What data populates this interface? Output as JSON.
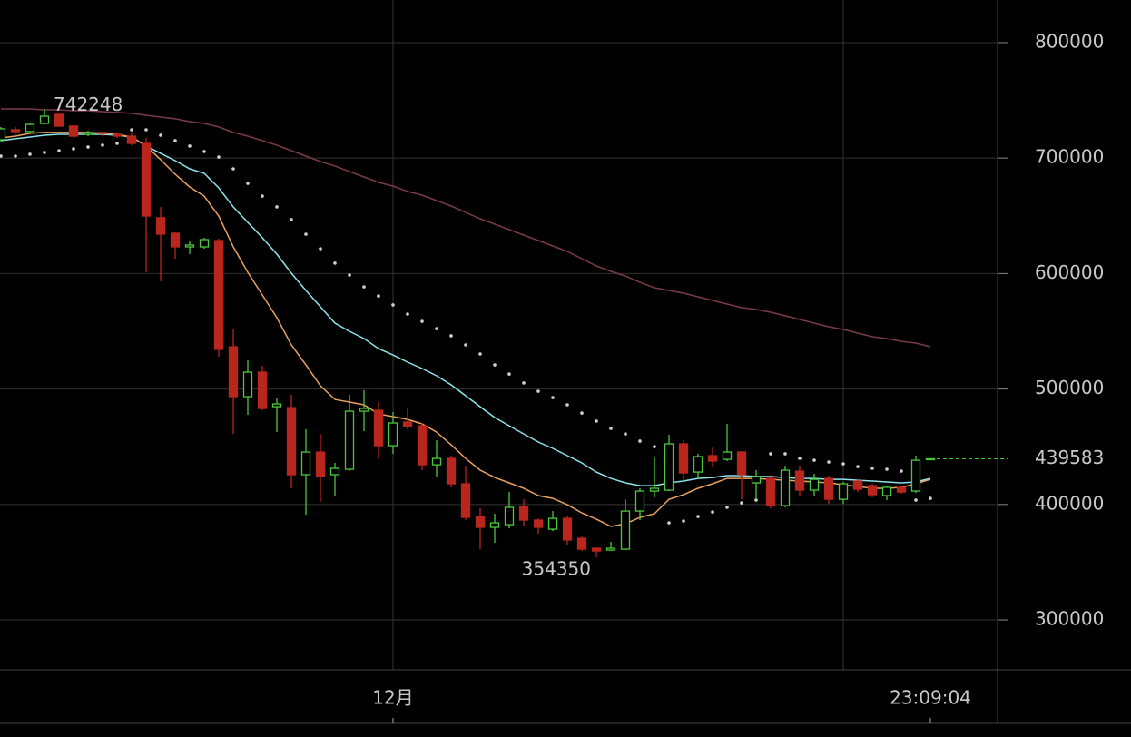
{
  "chart_data": {
    "type": "candlestick",
    "categories": [
      null,
      null,
      null,
      null,
      null,
      null,
      null,
      null,
      null,
      null,
      null,
      null,
      null,
      null,
      null,
      null,
      null,
      null,
      null,
      null,
      null,
      null,
      null,
      null,
      null,
      null,
      null,
      "12月",
      null,
      null,
      null,
      null,
      null,
      null,
      null,
      null,
      null,
      null,
      null,
      null,
      null,
      null,
      null,
      null,
      null,
      null,
      null,
      null,
      null,
      null,
      null,
      null,
      null,
      null,
      null,
      null,
      null,
      null,
      null,
      null,
      null,
      null,
      null,
      null,
      "23:09:04"
    ],
    "open": [
      715900,
      724500,
      723000,
      730000,
      737900,
      727700,
      720600,
      722200,
      720600,
      719000,
      712700,
      648300,
      634900,
      623100,
      623100,
      628600,
      536600,
      493400,
      514600,
      484700,
      483900,
      425800,
      445400,
      425800,
      430500,
      480800,
      481600,
      450900,
      471400,
      468200,
      434400,
      439900,
      417900,
      389600,
      380200,
      382500,
      398300,
      386500,
      378600,
      388000,
      370700,
      362100,
      360500,
      361300,
      394300,
      411600,
      412400,
      452500,
      428100,
      442300,
      439100,
      445400,
      418700,
      422600,
      399000,
      428900,
      412400,
      422600,
      404500,
      420300,
      416300,
      407700,
      414800,
      411600,
      439100
    ],
    "high": [
      726900,
      726900,
      730800,
      742248,
      738700,
      728500,
      723700,
      723000,
      722200,
      721400,
      717400,
      657700,
      635700,
      628600,
      631000,
      630200,
      551600,
      524800,
      520100,
      492600,
      495000,
      465100,
      461100,
      436000,
      495000,
      498900,
      488700,
      480000,
      483200,
      470600,
      455600,
      442300,
      433600,
      396700,
      392000,
      410800,
      404500,
      388000,
      394300,
      389600,
      372300,
      362900,
      367600,
      404500,
      414000,
      441500,
      460400,
      455600,
      443900,
      449400,
      469800,
      446200,
      429700,
      424200,
      433600,
      433600,
      426600,
      425000,
      419500,
      421800,
      417900,
      416300,
      416300,
      442300,
      439900
    ],
    "low": [
      714300,
      720600,
      721400,
      729200,
      726900,
      717400,
      719000,
      719000,
      717400,
      711200,
      601100,
      593200,
      612900,
      616800,
      621500,
      528000,
      461100,
      477700,
      481600,
      462700,
      414000,
      391200,
      402200,
      406900,
      428900,
      463500,
      439900,
      443900,
      465100,
      429700,
      424200,
      414800,
      386500,
      361300,
      366800,
      379400,
      381000,
      374700,
      377000,
      365200,
      359700,
      354350,
      359700,
      360500,
      386500,
      406100,
      411600,
      420300,
      422600,
      432800,
      437600,
      404500,
      404500,
      396700,
      397500,
      406900,
      406900,
      400600,
      400600,
      410800,
      406100,
      403800,
      409300,
      410000,
      438800
    ],
    "close": [
      725300,
      723000,
      729200,
      736300,
      727700,
      719000,
      722200,
      721400,
      719000,
      712700,
      649800,
      634100,
      623100,
      624700,
      629400,
      534300,
      493400,
      514600,
      483200,
      487100,
      425800,
      445400,
      424200,
      431300,
      480800,
      483200,
      450900,
      470600,
      467400,
      434400,
      439900,
      417900,
      388800,
      380200,
      384100,
      397500,
      386500,
      380200,
      388000,
      369200,
      361300,
      359700,
      362100,
      394300,
      411600,
      414000,
      452500,
      427300,
      441500,
      437600,
      445400,
      425800,
      424200,
      399000,
      429700,
      412400,
      421800,
      404500,
      417900,
      413200,
      408500,
      414800,
      410800,
      438300,
      439583
    ],
    "up_color": "#4cc83c",
    "down_color": "#b8261e",
    "indicators": [
      {
        "color": "#7a3a4a",
        "style": "line",
        "values": [
          742600,
          742600,
          742600,
          741800,
          741800,
          741000,
          741000,
          740200,
          739500,
          738700,
          737100,
          735500,
          734000,
          731600,
          730000,
          726900,
          722200,
          719000,
          715100,
          711200,
          706400,
          701700,
          697000,
          693100,
          688400,
          683600,
          678900,
          675800,
          671100,
          667900,
          663200,
          658500,
          653000,
          647500,
          642800,
          638000,
          633300,
          628600,
          623900,
          619200,
          612900,
          606600,
          601900,
          597900,
          592400,
          587700,
          585400,
          583000,
          579900,
          576700,
          573600,
          570400,
          568900,
          566500,
          563400,
          560200,
          557100,
          553900,
          551600,
          548400,
          545300,
          543700,
          541300,
          539800,
          536600
        ]
      },
      {
        "color": "#8ee3ea",
        "style": "line",
        "values": [
          715100,
          716700,
          718200,
          719800,
          720600,
          720600,
          720600,
          720600,
          719800,
          718200,
          710400,
          704100,
          697800,
          690700,
          686800,
          674200,
          657700,
          644300,
          631000,
          616800,
          600300,
          585400,
          571200,
          557100,
          550000,
          543700,
          535000,
          529500,
          523300,
          517800,
          511500,
          503600,
          494200,
          484700,
          475300,
          468200,
          461100,
          454100,
          448600,
          442300,
          436000,
          428100,
          422600,
          418700,
          416300,
          416300,
          418700,
          420300,
          422600,
          423400,
          425000,
          425000,
          424200,
          424200,
          423400,
          422600,
          422600,
          421800,
          421800,
          421000,
          420300,
          419500,
          418700,
          419500,
          422600
        ]
      },
      {
        "color": "#e8a060",
        "style": "line",
        "values": [
          717400,
          719000,
          721400,
          722200,
          722200,
          722200,
          722200,
          721400,
          720600,
          718200,
          710400,
          698600,
          686000,
          675000,
          667100,
          649800,
          623100,
          601100,
          581400,
          561800,
          538200,
          520900,
          502800,
          491000,
          488700,
          486300,
          478400,
          476100,
          473700,
          469800,
          462700,
          451700,
          439900,
          429700,
          423400,
          418700,
          414000,
          407700,
          405300,
          399800,
          392700,
          387200,
          381000,
          383300,
          388800,
          392000,
          404500,
          408500,
          414000,
          417900,
          422600,
          422600,
          422600,
          421800,
          421000,
          420300,
          419500,
          418700,
          417100,
          415500,
          414000,
          414000,
          414800,
          417900,
          421800
        ]
      },
      {
        "color": "#cfcfcf",
        "style": "dots",
        "values": [
          701700,
          701700,
          703300,
          704900,
          706400,
          708000,
          709600,
          711200,
          712700,
          724500,
          724500,
          719800,
          715100,
          710400,
          705700,
          700900,
          690700,
          678100,
          667100,
          657700,
          646700,
          634100,
          621500,
          609000,
          598700,
          588500,
          580600,
          572800,
          564900,
          558600,
          552300,
          546100,
          538200,
          530300,
          520900,
          513000,
          505200,
          498100,
          492600,
          486300,
          479200,
          472200,
          465900,
          461100,
          454900,
          450100,
          384100,
          385700,
          389600,
          393500,
          397500,
          401400,
          403800,
          443900,
          443900,
          439900,
          438300,
          436800,
          435200,
          432800,
          431300,
          430500,
          428900,
          403800,
          405300
        ]
      }
    ],
    "max_label": 742248,
    "min_label": 354350,
    "last_price": 439583,
    "last_price_color": "#3cc33c",
    "ylim": [
      256800,
      836900
    ],
    "yticks": [
      300000,
      400000,
      500000,
      600000,
      700000,
      800000
    ],
    "grid": true
  }
}
